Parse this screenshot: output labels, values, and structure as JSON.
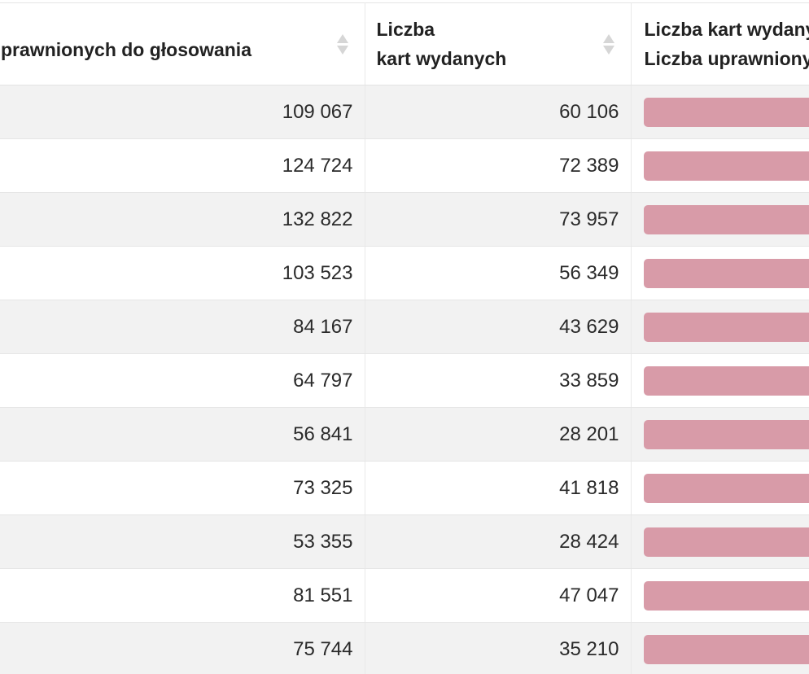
{
  "columns": [
    {
      "line1": "",
      "line2": "Liczba uprawnionych do głosowania"
    },
    {
      "line1": "Liczba",
      "line2": "kart wydanych"
    },
    {
      "line1": "Liczba kart wydanych /",
      "line2": "Liczba uprawnionych"
    }
  ],
  "rows": [
    {
      "eligible": "109 067",
      "issued": "60 106"
    },
    {
      "eligible": "124 724",
      "issued": "72 389"
    },
    {
      "eligible": "132 822",
      "issued": "73 957"
    },
    {
      "eligible": "103 523",
      "issued": "56 349"
    },
    {
      "eligible": "84 167",
      "issued": "43 629"
    },
    {
      "eligible": "64 797",
      "issued": "33 859"
    },
    {
      "eligible": "56 841",
      "issued": "28 201"
    },
    {
      "eligible": "73 325",
      "issued": "41 818"
    },
    {
      "eligible": "53 355",
      "issued": "28 424"
    },
    {
      "eligible": "81 551",
      "issued": "47 047"
    },
    {
      "eligible": "75 744",
      "issued": "35 210"
    }
  ],
  "colors": {
    "bar": "#d89ba8",
    "row_alt": "#f2f2f2",
    "sort_icon": "#d6d6d6"
  }
}
